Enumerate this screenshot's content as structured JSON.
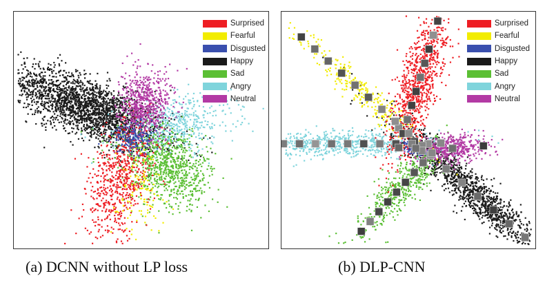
{
  "chart_data": [
    {
      "type": "scatter",
      "panel": "a",
      "title": "",
      "caption": "(a)  DCNN without LP loss",
      "xlabel": "",
      "ylabel": "",
      "xlim": [
        0,
        100
      ],
      "ylim": [
        0,
        100
      ],
      "grid": false,
      "legend_position": "top-right",
      "note": "t-SNE embedding; no axis ticks. Clusters given as approximate center/spread/direction in normalized data units.",
      "series": [
        {
          "name": "Surprised",
          "color": "#ee1d23",
          "center": [
            41,
            28
          ],
          "spread": [
            6,
            13
          ],
          "angle_deg": 75,
          "count": 650,
          "face_thumbnails": 0
        },
        {
          "name": "Fearful",
          "color": "#f2ec00",
          "center": [
            49,
            24
          ],
          "spread": [
            5,
            10
          ],
          "angle_deg": 85,
          "count": 110,
          "face_thumbnails": 0
        },
        {
          "name": "Disgusted",
          "color": "#3a4fae",
          "center": [
            47,
            46
          ],
          "spread": [
            3,
            4
          ],
          "angle_deg": 0,
          "count": 160,
          "face_thumbnails": 0
        },
        {
          "name": "Happy",
          "color": "#1a1a1a",
          "center": [
            28,
            60
          ],
          "spread": [
            17,
            6
          ],
          "angle_deg": -24,
          "count": 2300,
          "face_thumbnails": 0
        },
        {
          "name": "Sad",
          "color": "#5bbf34",
          "center": [
            60,
            34
          ],
          "spread": [
            10,
            7
          ],
          "angle_deg": -40,
          "count": 900,
          "face_thumbnails": 0
        },
        {
          "name": "Angry",
          "color": "#7fd4dc",
          "center": [
            64,
            52
          ],
          "spread": [
            12,
            6
          ],
          "angle_deg": 10,
          "count": 500,
          "face_thumbnails": 0
        },
        {
          "name": "Neutral",
          "color": "#b33aa4",
          "center": [
            51,
            61
          ],
          "spread": [
            5,
            8
          ],
          "angle_deg": 85,
          "count": 650,
          "face_thumbnails": 0
        }
      ]
    },
    {
      "type": "scatter",
      "panel": "b",
      "title": "",
      "caption": "(b)  DLP-CNN",
      "xlabel": "",
      "ylabel": "",
      "xlim": [
        0,
        100
      ],
      "ylim": [
        0,
        100
      ],
      "grid": false,
      "legend_position": "top-right",
      "note": "t-SNE embedding with sample face thumbnails overlaid along each class arm.",
      "series": [
        {
          "name": "Surprised",
          "color": "#ee1d23",
          "center": [
            54,
            70
          ],
          "spread": [
            4,
            16
          ],
          "angle_deg": 74,
          "count": 900,
          "face_thumbnails": 10
        },
        {
          "name": "Fearful",
          "color": "#f2ec00",
          "center": [
            31,
            67
          ],
          "spread": [
            2.5,
            19
          ],
          "angle_deg": 136,
          "count": 300,
          "face_thumbnails": 10
        },
        {
          "name": "Disgusted",
          "color": "#3a4fae",
          "center": [
            53,
            42
          ],
          "spread": [
            3,
            1.5
          ],
          "angle_deg": -20,
          "count": 70,
          "face_thumbnails": 1
        },
        {
          "name": "Happy",
          "color": "#1a1a1a",
          "center": [
            75,
            24
          ],
          "spread": [
            3.5,
            22
          ],
          "angle_deg": 137,
          "count": 1400,
          "face_thumbnails": 10
        },
        {
          "name": "Sad",
          "color": "#5bbf34",
          "center": [
            47,
            25
          ],
          "spread": [
            3.5,
            14
          ],
          "angle_deg": 50,
          "count": 500,
          "face_thumbnails": 10
        },
        {
          "name": "Angry",
          "color": "#7fd4dc",
          "center": [
            22,
            44
          ],
          "spread": [
            20,
            3
          ],
          "angle_deg": 0,
          "count": 700,
          "face_thumbnails": 12
        },
        {
          "name": "Neutral",
          "color": "#b33aa4",
          "center": [
            68,
            42
          ],
          "spread": [
            7,
            3
          ],
          "angle_deg": 5,
          "count": 450,
          "face_thumbnails": 3
        }
      ]
    }
  ],
  "legend": {
    "items": [
      {
        "label": "Surprised",
        "color": "#ee1d23"
      },
      {
        "label": "Fearful",
        "color": "#f2ec00"
      },
      {
        "label": "Disgusted",
        "color": "#3a4fae"
      },
      {
        "label": "Happy",
        "color": "#1a1a1a"
      },
      {
        "label": "Sad",
        "color": "#5bbf34"
      },
      {
        "label": "Angry",
        "color": "#7fd4dc"
      },
      {
        "label": "Neutral",
        "color": "#b33aa4"
      }
    ]
  },
  "captions": {
    "a": "(a)  DCNN without LP loss",
    "b": "(b)  DLP-CNN"
  }
}
